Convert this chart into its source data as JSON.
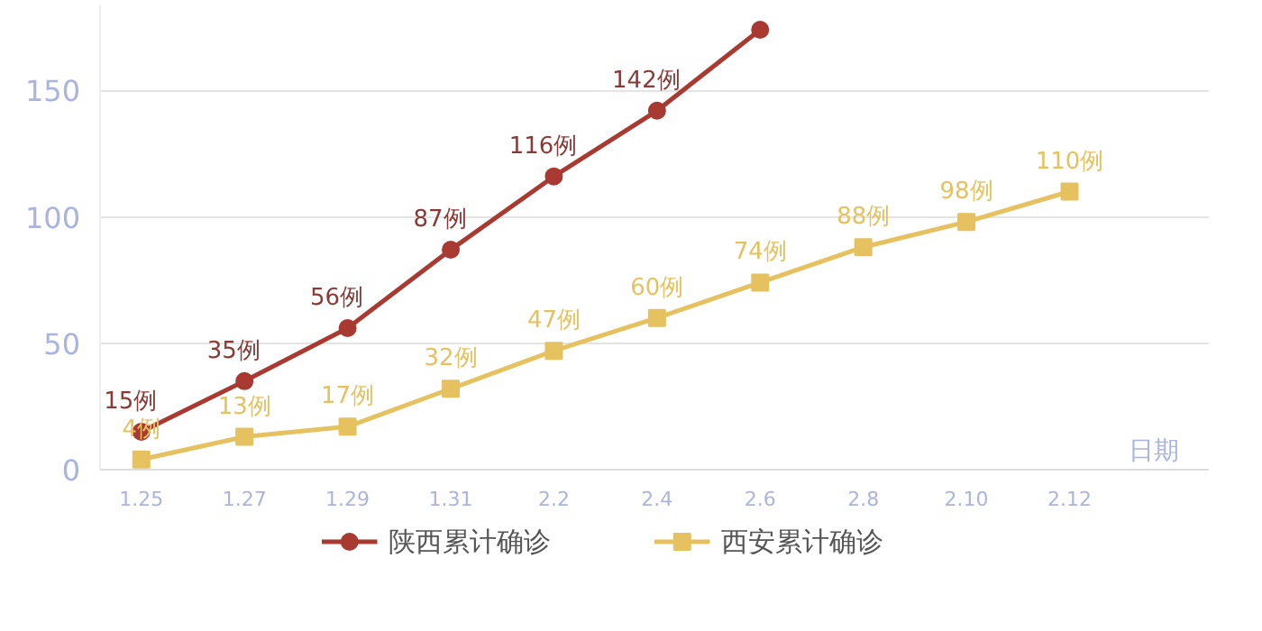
{
  "chart_data": {
    "type": "line",
    "xlabel": "日期",
    "categories": [
      "1.25",
      "1.27",
      "1.29",
      "1.31",
      "2.2",
      "2.4",
      "2.6",
      "2.8",
      "2.10",
      "2.12"
    ],
    "series": [
      {
        "name": "陕西累计确诊",
        "color": "#a83a32",
        "marker": "circle",
        "values": [
          15,
          35,
          56,
          87,
          116,
          142,
          174,
          null,
          null,
          null
        ],
        "value_labels": [
          "15例",
          "35例",
          "56例",
          "87例",
          "116例",
          "142例",
          null,
          null,
          null,
          null
        ]
      },
      {
        "name": "西安累计确诊",
        "color": "#e6c15f",
        "marker": "square",
        "values": [
          4,
          13,
          17,
          32,
          47,
          60,
          74,
          88,
          98,
          110
        ],
        "value_labels": [
          "4例",
          "13例",
          "17例",
          "32例",
          "47例",
          "60例",
          "74例",
          "88例",
          "98例",
          "110例"
        ]
      }
    ],
    "ylim": [
      0,
      184
    ],
    "yticks": [
      0,
      50,
      100,
      150
    ],
    "grid": "y",
    "legend": "bottom",
    "line_style": "solid"
  }
}
